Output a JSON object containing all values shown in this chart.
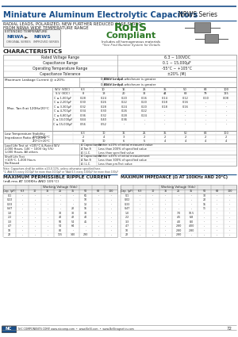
{
  "title": "Miniature Aluminum Electrolytic Capacitors",
  "series": "NRWS Series",
  "subtitle1": "RADIAL LEADS, POLARIZED, NEW FURTHER REDUCED CASE SIZING,",
  "subtitle2": "FROM NRWA WIDE TEMPERATURE RANGE",
  "rohs_line1": "RoHS",
  "rohs_line2": "Compliant",
  "rohs_line3": "Includes all homogeneous materials",
  "rohs_note": "*See Find Number System for Details",
  "extended_temp": "EXTENDED TEMPERATURE",
  "nrwa_label": "NRWA",
  "nrws_label": "NRWS",
  "nrwa_sub": "ORIGINAL SERIES",
  "nrws_sub": "IMPROVED SERIES",
  "characteristics_title": "CHARACTERISTICS",
  "char_rows": [
    [
      "Rated Voltage Range",
      "6.3 ~ 100VDC"
    ],
    [
      "Capacitance Range",
      "0.1 ~ 15,000μF"
    ],
    [
      "Operating Temperature Range",
      "-55°C ~ +105°C"
    ],
    [
      "Capacitance Tolerance",
      "±20% (M)"
    ]
  ],
  "leakage_label": "Maximum Leakage Current @ ±20%:",
  "leakage_after1": "After 1 min.",
  "leakage_val1": "0.03CV or 4μA whichever is greater",
  "leakage_after2": "After 2 min.",
  "leakage_val2": "0.01CV or 3μA whichever is greater",
  "tan_label": "Max. Tan δ at 120Hz/20°C",
  "tan_rows": [
    [
      "W.V. (VDC)",
      "6.3",
      "10",
      "16",
      "25",
      "35",
      "50",
      "63",
      "100"
    ],
    [
      "S.V. (VDC)",
      "8",
      "13",
      "20",
      "32",
      "44",
      "63",
      "79",
      "125"
    ],
    [
      "C ≤ 1,000μF",
      "0.28",
      "0.24",
      "0.20",
      "0.16",
      "0.14",
      "0.12",
      "0.10",
      "0.08"
    ],
    [
      "C ≤ 2,200μF",
      "0.30",
      "0.26",
      "0.22",
      "0.20",
      "0.18",
      "0.16",
      "-",
      "-"
    ],
    [
      "C ≤ 3,300μF",
      "0.32",
      "0.28",
      "0.24",
      "0.20",
      "0.18",
      "0.16",
      "-",
      "-"
    ],
    [
      "C ≤ 4,700μF",
      "0.34",
      "0.30",
      "0.26",
      "0.22",
      "-",
      "-",
      "-",
      "-"
    ],
    [
      "C ≤ 6,800μF",
      "0.36",
      "0.32",
      "0.28",
      "0.24",
      "-",
      "-",
      "-",
      "-"
    ],
    [
      "C ≤ 10,000μF",
      "0.44",
      "0.40",
      "0.36",
      "-",
      "-",
      "-",
      "-",
      "-"
    ],
    [
      "C ≤ 15,000μF",
      "0.56",
      "0.52",
      "-",
      "-",
      "-",
      "-",
      "-",
      "-"
    ]
  ],
  "low_temp_label1": "Low Temperature Stability",
  "low_temp_label2": "Impedance Ratio @ 120Hz",
  "low_temp_rows": [
    [
      "-25°C/+20°C",
      "2",
      "4",
      "3",
      "2",
      "2",
      "2",
      "2",
      "2"
    ],
    [
      "-40°C/+20°C",
      "12",
      "10",
      "6",
      "5",
      "4",
      "4",
      "4",
      "4"
    ]
  ],
  "load_life_label1": "Load Life Test at +105°C & Rated W.V.",
  "load_life_label2": "2,000 Hours, 14V ~ 100V (by 5%)",
  "load_life_label3": "1,000 Hours, All others",
  "load_life_rows": [
    [
      "Δ Capacitance",
      "Within ±20% of initial measured value"
    ],
    [
      "Δ Tan δ",
      "Less than 200% of specified value"
    ],
    [
      "Δ I.L.C.",
      "Less than specified value"
    ]
  ],
  "shelf_label1": "Shelf Life Test",
  "shelf_label2": "+105°C, 1,000 Hours",
  "shelf_label3": "No Biased",
  "shelf_rows": [
    [
      "Δ Capacitance",
      "Within ±45% of initial measurement"
    ],
    [
      "Δ Tan δ",
      "Less than 300% of specified value"
    ],
    [
      "Δ I.L.C.",
      "Less than pre-Test value"
    ]
  ],
  "note1": "Note: Capacitors shall be within ±20-0.11%, unless otherwise specified here.",
  "note2": "*1. Add 0.5 every 1000μF for more than 1000μF or *Add 0.5 every 1000μF for more than 100μF",
  "ripple_title": "MAXIMUM PERMISSIBLE RIPPLE CURRENT",
  "ripple_subtitle": "(mA rms AT 100KHz AND 105°C)",
  "ripple_wv_headers": [
    "Working Voltage (Vdc)",
    ""
  ],
  "ripple_headers": [
    "Cap. (μF)",
    "6.3",
    "10",
    "16",
    "25",
    "35",
    "50",
    "63",
    "100"
  ],
  "ripple_data": [
    [
      "0.1",
      "-",
      "-",
      "-",
      "-",
      "-",
      "65",
      "-",
      "-"
    ],
    [
      "0.22",
      "-",
      "-",
      "-",
      "-",
      "-",
      "10",
      "-",
      "-"
    ],
    [
      "0.33",
      "-",
      "-",
      "-",
      "-",
      "-",
      "13",
      "-",
      "-"
    ],
    [
      "0.47",
      "-",
      "-",
      "-",
      "-",
      "20",
      "15",
      "-",
      "-"
    ],
    [
      "1.0",
      "-",
      "-",
      "-",
      "30",
      "30",
      "30",
      "-",
      "-"
    ],
    [
      "2.2",
      "-",
      "-",
      "-",
      "40",
      "42",
      "40",
      "-",
      "-"
    ],
    [
      "3.3",
      "-",
      "-",
      "-",
      "50",
      "54",
      "45",
      "-",
      "-"
    ],
    [
      "4.7",
      "-",
      "-",
      "-",
      "54",
      "64",
      "-",
      "-",
      "-"
    ],
    [
      "10",
      "-",
      "-",
      "-",
      "80",
      "-",
      "-",
      "-",
      "-"
    ],
    [
      "22",
      "-",
      "-",
      "-",
      "115",
      "140",
      "230",
      "-",
      "-"
    ]
  ],
  "impedance_title": "MAXIMUM IMPEDANCE (Ω AT 100KHz AND 20°C)",
  "impedance_headers": [
    "Cap. (μF)",
    "6.3",
    "10",
    "16",
    "25",
    "35",
    "50",
    "63",
    "100"
  ],
  "impedance_data": [
    [
      "0.1",
      "-",
      "-",
      "-",
      "-",
      "-",
      "30",
      "-",
      "-"
    ],
    [
      "0.02",
      "-",
      "-",
      "-",
      "-",
      "-",
      "20",
      "-",
      "-"
    ],
    [
      "0.33",
      "-",
      "-",
      "-",
      "-",
      "-",
      "15",
      "-",
      "-"
    ],
    [
      "0.47",
      "-",
      "-",
      "-",
      "-",
      "-",
      "11",
      "-",
      "-"
    ],
    [
      "1.0",
      "-",
      "-",
      "-",
      "7.0",
      "10.5",
      "-",
      "-",
      "-"
    ],
    [
      "2.2",
      "-",
      "-",
      "-",
      "4.5",
      "6.8",
      "-",
      "-",
      "-"
    ],
    [
      "3.3",
      "-",
      "-",
      "-",
      "4.0",
      "8.0",
      "-",
      "-",
      "-"
    ],
    [
      "4.7",
      "-",
      "-",
      "-",
      "2.80",
      "4.00",
      "-",
      "-",
      "-"
    ],
    [
      "10",
      "-",
      "-",
      "-",
      "2.80",
      "2.80",
      "-",
      "-",
      "-"
    ],
    [
      "22",
      "-",
      "-",
      "-",
      "2.80",
      "-",
      "-",
      "-",
      "-"
    ]
  ],
  "footer_text": "NIC COMPONENTS CORP. www.niccomp.com  •  www.BeSI.com  •  www.BeSInagnetics.com",
  "page_num": "72",
  "bg_color": "#ffffff",
  "title_color": "#1a4f8a",
  "header_blue": "#1a4f8a",
  "rohs_green": "#2d7a27",
  "table_border": "#999999",
  "table_inner": "#cccccc",
  "text_dark": "#222222",
  "text_light": "#555555"
}
